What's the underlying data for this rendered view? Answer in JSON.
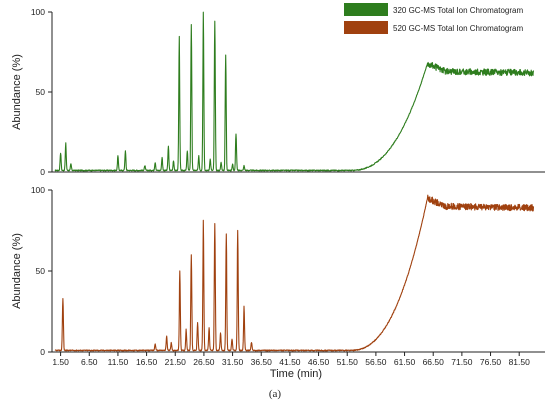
{
  "figure": {
    "caption": "(a)",
    "xlabel": "Time (min)"
  },
  "legend": [
    {
      "label": "320 GC-MS Total Ion Chromatogram",
      "color": "#2e7d1e"
    },
    {
      "label": "520 GC-MS Total Ion Chromatogram",
      "color": "#a0410f"
    }
  ],
  "chart_data": [
    {
      "type": "line",
      "series": [
        {
          "name": "320 GC-MS Total Ion Chromatogram",
          "color": "#2e7d1e"
        }
      ],
      "ylabel": "Abundance (%)",
      "yticks": [
        0,
        50,
        100
      ],
      "ylim": [
        0,
        100
      ],
      "xlim": [
        0,
        86
      ],
      "baseline": 1,
      "peaks": [
        [
          1.5,
          12
        ],
        [
          2.4,
          18
        ],
        [
          3.3,
          5
        ],
        [
          11.5,
          10
        ],
        [
          12.8,
          13
        ],
        [
          16.2,
          4
        ],
        [
          18.0,
          6
        ],
        [
          19.2,
          9
        ],
        [
          20.3,
          16
        ],
        [
          21.2,
          7
        ],
        [
          22.2,
          85
        ],
        [
          23.6,
          13
        ],
        [
          24.3,
          92
        ],
        [
          25.6,
          10
        ],
        [
          26.4,
          100
        ],
        [
          27.6,
          8
        ],
        [
          28.4,
          94
        ],
        [
          29.5,
          6
        ],
        [
          30.3,
          73
        ],
        [
          31.5,
          5
        ],
        [
          32.1,
          24
        ],
        [
          33.5,
          4
        ]
      ],
      "plateau": {
        "rise_start": 52,
        "plateau_start": 65.5,
        "level": 63,
        "overshoot": 68,
        "end_level": 62,
        "x_end": 84
      }
    },
    {
      "type": "line",
      "series": [
        {
          "name": "520 GC-MS Total Ion Chromatogram",
          "color": "#a0410f"
        }
      ],
      "ylabel": "Abundance (%)",
      "yticks": [
        0,
        50,
        100
      ],
      "ylim": [
        0,
        100
      ],
      "xlabel": "Time (min)",
      "xticks": [
        1.5,
        6.5,
        11.5,
        16.5,
        21.5,
        26.5,
        31.5,
        36.5,
        41.5,
        46.5,
        51.5,
        56.5,
        61.5,
        66.5,
        71.5,
        76.5,
        81.5
      ],
      "xtick_labels": [
        "1.50",
        "6.50",
        "11.50",
        "16.50",
        "21.50",
        "26.50",
        "31.50",
        "36.50",
        "41.50",
        "46.50",
        "51.50",
        "56.50",
        "61.50",
        "66.50",
        "71.50",
        "76.50",
        "81.50"
      ],
      "xlim": [
        0,
        86
      ],
      "baseline": 1,
      "peaks": [
        [
          1.9,
          33
        ],
        [
          18.0,
          5
        ],
        [
          20.0,
          10
        ],
        [
          20.8,
          6
        ],
        [
          22.3,
          50
        ],
        [
          23.4,
          14
        ],
        [
          24.3,
          60
        ],
        [
          25.4,
          18
        ],
        [
          26.4,
          81
        ],
        [
          27.4,
          15
        ],
        [
          28.4,
          79
        ],
        [
          29.4,
          12
        ],
        [
          30.4,
          73
        ],
        [
          31.4,
          8
        ],
        [
          32.4,
          75
        ],
        [
          33.5,
          28
        ],
        [
          34.8,
          6
        ]
      ],
      "plateau": {
        "rise_start": 52,
        "plateau_start": 65.5,
        "level": 90,
        "overshoot": 95,
        "end_level": 89,
        "x_end": 84
      }
    }
  ]
}
